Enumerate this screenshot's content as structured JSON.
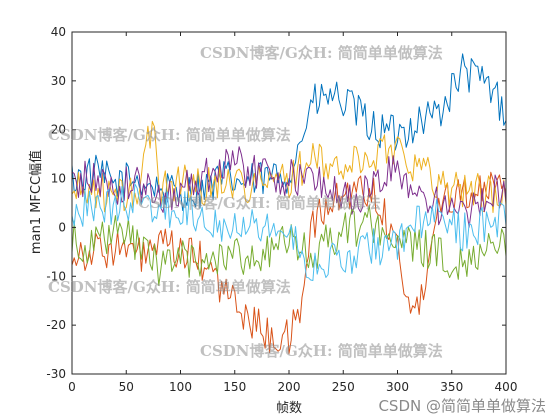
{
  "chart_data": {
    "type": "line",
    "xlabel": "帧数",
    "ylabel": "man1 MFCC幅值",
    "xlim": [
      0,
      400
    ],
    "ylim": [
      -30,
      40
    ],
    "xticks": [
      0,
      50,
      100,
      150,
      200,
      250,
      300,
      350,
      400
    ],
    "yticks": [
      -30,
      -20,
      -10,
      0,
      10,
      20,
      30,
      40
    ],
    "grid": false,
    "legend": "none",
    "series": [
      {
        "color": "#0072BD",
        "points": [
          [
            0,
            10
          ],
          [
            20,
            11
          ],
          [
            40,
            9
          ],
          [
            60,
            10
          ],
          [
            80,
            8
          ],
          [
            100,
            7
          ],
          [
            120,
            8
          ],
          [
            140,
            10
          ],
          [
            160,
            9
          ],
          [
            180,
            10
          ],
          [
            200,
            11
          ],
          [
            210,
            17
          ],
          [
            220,
            25
          ],
          [
            240,
            27
          ],
          [
            260,
            24
          ],
          [
            280,
            20
          ],
          [
            300,
            19
          ],
          [
            320,
            22
          ],
          [
            340,
            24
          ],
          [
            350,
            28
          ],
          [
            360,
            32
          ],
          [
            380,
            30
          ],
          [
            400,
            24
          ]
        ]
      },
      {
        "color": "#D95319",
        "points": [
          [
            0,
            -5
          ],
          [
            20,
            -5
          ],
          [
            40,
            -4
          ],
          [
            60,
            -6
          ],
          [
            80,
            -4
          ],
          [
            100,
            -5
          ],
          [
            120,
            -7
          ],
          [
            140,
            -13
          ],
          [
            160,
            -18
          ],
          [
            180,
            -22
          ],
          [
            200,
            -23
          ],
          [
            210,
            -17
          ],
          [
            220,
            0
          ],
          [
            240,
            5
          ],
          [
            260,
            8
          ],
          [
            280,
            7
          ],
          [
            300,
            -4
          ],
          [
            310,
            -15
          ],
          [
            320,
            -18
          ],
          [
            330,
            -2
          ],
          [
            340,
            6
          ],
          [
            360,
            8
          ],
          [
            380,
            7
          ],
          [
            400,
            8
          ]
        ]
      },
      {
        "color": "#EDB120",
        "points": [
          [
            0,
            7
          ],
          [
            20,
            8
          ],
          [
            40,
            6
          ],
          [
            60,
            7
          ],
          [
            75,
            22
          ],
          [
            80,
            8
          ],
          [
            100,
            10
          ],
          [
            120,
            8
          ],
          [
            140,
            10
          ],
          [
            160,
            9
          ],
          [
            180,
            9
          ],
          [
            200,
            10
          ],
          [
            220,
            14
          ],
          [
            240,
            12
          ],
          [
            260,
            13
          ],
          [
            280,
            15
          ],
          [
            300,
            17
          ],
          [
            320,
            12
          ],
          [
            340,
            9
          ],
          [
            360,
            8
          ],
          [
            380,
            7
          ],
          [
            400,
            6
          ]
        ]
      },
      {
        "color": "#7E2F8E",
        "points": [
          [
            0,
            9
          ],
          [
            20,
            10
          ],
          [
            40,
            8
          ],
          [
            60,
            9
          ],
          [
            80,
            6
          ],
          [
            100,
            8
          ],
          [
            120,
            10
          ],
          [
            140,
            14
          ],
          [
            160,
            12
          ],
          [
            180,
            11
          ],
          [
            200,
            10
          ],
          [
            220,
            10
          ],
          [
            240,
            8
          ],
          [
            260,
            5
          ],
          [
            280,
            9
          ],
          [
            300,
            12
          ],
          [
            320,
            7
          ],
          [
            340,
            4
          ],
          [
            360,
            2
          ],
          [
            380,
            5
          ],
          [
            400,
            9
          ]
        ]
      },
      {
        "color": "#77AC30",
        "points": [
          [
            0,
            -2
          ],
          [
            20,
            -4
          ],
          [
            40,
            -1
          ],
          [
            60,
            -3
          ],
          [
            80,
            -8
          ],
          [
            100,
            -6
          ],
          [
            120,
            -8
          ],
          [
            140,
            -5
          ],
          [
            160,
            -6
          ],
          [
            180,
            -5
          ],
          [
            200,
            -3
          ],
          [
            220,
            -6
          ],
          [
            240,
            -2
          ],
          [
            260,
            0
          ],
          [
            280,
            1
          ],
          [
            300,
            -3
          ],
          [
            320,
            -4
          ],
          [
            340,
            -6
          ],
          [
            360,
            -7
          ],
          [
            380,
            -4
          ],
          [
            400,
            -2
          ]
        ]
      },
      {
        "color": "#4DBEEE",
        "points": [
          [
            0,
            3
          ],
          [
            20,
            5
          ],
          [
            40,
            4
          ],
          [
            60,
            6
          ],
          [
            80,
            3
          ],
          [
            100,
            4
          ],
          [
            120,
            2
          ],
          [
            140,
            1
          ],
          [
            160,
            2
          ],
          [
            180,
            0
          ],
          [
            200,
            -1
          ],
          [
            220,
            -8
          ],
          [
            240,
            -7
          ],
          [
            260,
            -6
          ],
          [
            280,
            -4
          ],
          [
            300,
            -3
          ],
          [
            320,
            1
          ],
          [
            340,
            2
          ],
          [
            360,
            -1
          ],
          [
            380,
            1
          ],
          [
            400,
            2
          ]
        ]
      }
    ]
  },
  "watermarks": [
    "CSDN博客/G众H: 简简单单做算法",
    "CSDN博客/G众H: 简简单单做算法",
    "CSDN博客/G众H: 简简单单做算法",
    "CSDN博客/G众H: 简简单单做算法",
    "CSDN博客/G众H: 简简单单做算法"
  ],
  "footer_watermark": "CSDN @简简单单做算法"
}
